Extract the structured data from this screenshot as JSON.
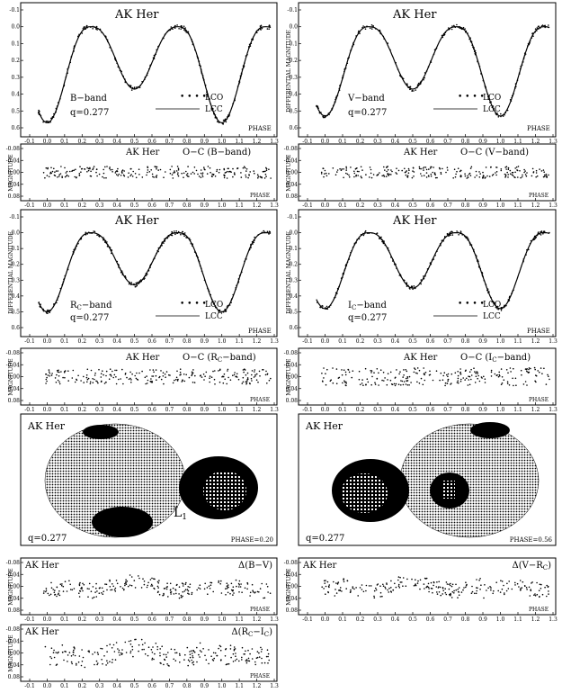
{
  "figure": {
    "star_title": "AK Her",
    "phase_label": "PHASE",
    "diff_mag_label": "DIFFERENTIAL MAGNITUDE",
    "magnitude_label": "MAGNITUDE",
    "legend_observed": "LCO",
    "legend_computed": "LCC",
    "q_text": "q=0.277",
    "l1_label": "L",
    "l1_sub": "1",
    "star_left_phase": "PHASE=0.20",
    "star_right_phase": "PHASE=0.56",
    "oc_b": "O−C (B−band)",
    "oc_v": "O−C (V−band)",
    "oc_r_pre": "O−C (R",
    "oc_i_pre": "O−C (I",
    "oc_suf": "−band)",
    "band_b": "B−band",
    "band_v": "V−band",
    "band_r_pre": "R",
    "band_i_pre": "I",
    "band_suf": "−band",
    "sub_c": "C",
    "ci_bv": "Δ(B−V)",
    "ci_vr_pre": "Δ(V−R",
    "ci_ri_pre": "Δ(R",
    "ci_ri_mid": "−I",
    "close_paren": ")"
  },
  "chart_data": [
    {
      "id": "lc_b",
      "type": "scatter",
      "band": "B",
      "series": [
        {
          "name": "LCO",
          "kind": "points"
        },
        {
          "name": "LCC",
          "kind": "line"
        }
      ],
      "x_range": [
        -0.1,
        1.3
      ],
      "y_range": [
        0.6,
        -0.1
      ],
      "y_ticks": [
        -0.1,
        0.0,
        0.1,
        0.2,
        0.3,
        0.4,
        0.5,
        0.6
      ],
      "curve": {
        "max_mag": 0.0,
        "primary_min": 0.57,
        "secondary_min": 0.37
      },
      "xlabel": "PHASE",
      "ylabel": "DIFFERENTIAL MAGNITUDE"
    },
    {
      "id": "lc_v",
      "type": "scatter",
      "band": "V",
      "series": [
        {
          "name": "LCO",
          "kind": "points"
        },
        {
          "name": "LCC",
          "kind": "line"
        }
      ],
      "x_range": [
        -0.1,
        1.3
      ],
      "y_range": [
        0.6,
        -0.1
      ],
      "y_ticks": [
        -0.1,
        0.0,
        0.1,
        0.2,
        0.3,
        0.4,
        0.5,
        0.6
      ],
      "curve": {
        "max_mag": 0.0,
        "primary_min": 0.53,
        "secondary_min": 0.37
      },
      "xlabel": "PHASE",
      "ylabel": "DIFFERENTIAL MAGNITUDE"
    },
    {
      "id": "lc_r",
      "type": "scatter",
      "band": "Rc",
      "series": [
        {
          "name": "LCO",
          "kind": "points"
        },
        {
          "name": "LCC",
          "kind": "line"
        }
      ],
      "x_range": [
        -0.1,
        1.3
      ],
      "y_range": [
        0.6,
        -0.1
      ],
      "y_ticks": [
        -0.1,
        0.0,
        0.1,
        0.2,
        0.3,
        0.4,
        0.5,
        0.6
      ],
      "curve": {
        "max_mag": 0.0,
        "primary_min": 0.5,
        "secondary_min": 0.33
      },
      "xlabel": "PHASE",
      "ylabel": "DIFFERENTIAL MAGNITUDE"
    },
    {
      "id": "lc_i",
      "type": "scatter",
      "band": "Ic",
      "series": [
        {
          "name": "LCO",
          "kind": "points"
        },
        {
          "name": "LCC",
          "kind": "line"
        }
      ],
      "x_range": [
        -0.1,
        1.3
      ],
      "y_range": [
        0.6,
        -0.1
      ],
      "y_ticks": [
        -0.1,
        0.0,
        0.1,
        0.2,
        0.3,
        0.4,
        0.5,
        0.6
      ],
      "curve": {
        "max_mag": 0.0,
        "primary_min": 0.48,
        "secondary_min": 0.35
      },
      "xlabel": "PHASE",
      "ylabel": "DIFFERENTIAL MAGNITUDE"
    },
    {
      "id": "oc_b",
      "type": "scatter",
      "x_range": [
        -0.1,
        1.3
      ],
      "y_range": [
        0.08,
        -0.08
      ],
      "y_ticks": [
        -0.08,
        -0.04,
        0.0,
        0.04,
        0.08
      ],
      "spread": 0.02,
      "xlabel": "PHASE",
      "ylabel": "MAGNITUDE"
    },
    {
      "id": "oc_v",
      "type": "scatter",
      "x_range": [
        -0.1,
        1.3
      ],
      "y_range": [
        0.08,
        -0.08
      ],
      "y_ticks": [
        -0.08,
        -0.04,
        0.0,
        0.04,
        0.08
      ],
      "spread": 0.02,
      "xlabel": "PHASE",
      "ylabel": "MAGNITUDE"
    },
    {
      "id": "oc_r",
      "type": "scatter",
      "x_range": [
        -0.1,
        1.3
      ],
      "y_range": [
        0.08,
        -0.08
      ],
      "y_ticks": [
        -0.08,
        -0.04,
        0.0,
        0.04,
        0.08
      ],
      "spread": 0.025,
      "xlabel": "PHASE",
      "ylabel": "MAGNITUDE"
    },
    {
      "id": "oc_i",
      "type": "scatter",
      "x_range": [
        -0.1,
        1.3
      ],
      "y_range": [
        0.08,
        -0.08
      ],
      "y_ticks": [
        -0.08,
        -0.04,
        0.0,
        0.04,
        0.08
      ],
      "spread": 0.03,
      "xlabel": "PHASE",
      "ylabel": "MAGNITUDE"
    },
    {
      "id": "ci_bv",
      "type": "scatter",
      "x_range": [
        -0.1,
        1.3
      ],
      "y_range": [
        0.08,
        -0.08
      ],
      "y_ticks": [
        -0.08,
        -0.04,
        0.0,
        0.04,
        0.08
      ],
      "spread": 0.025,
      "xlabel": "PHASE",
      "ylabel": "MAGNITUDE"
    },
    {
      "id": "ci_vr",
      "type": "scatter",
      "x_range": [
        -0.1,
        1.3
      ],
      "y_range": [
        0.08,
        -0.08
      ],
      "y_ticks": [
        -0.08,
        -0.04,
        0.0,
        0.04,
        0.08
      ],
      "spread": 0.025,
      "xlabel": "PHASE",
      "ylabel": "MAGNITUDE"
    },
    {
      "id": "ci_ri",
      "type": "scatter",
      "x_range": [
        -0.1,
        1.3
      ],
      "y_range": [
        0.08,
        -0.08
      ],
      "y_ticks": [
        -0.08,
        -0.04,
        0.0,
        0.04,
        0.08
      ],
      "spread": 0.035,
      "xlabel": "PHASE",
      "ylabel": "MAGNITUDE"
    }
  ]
}
